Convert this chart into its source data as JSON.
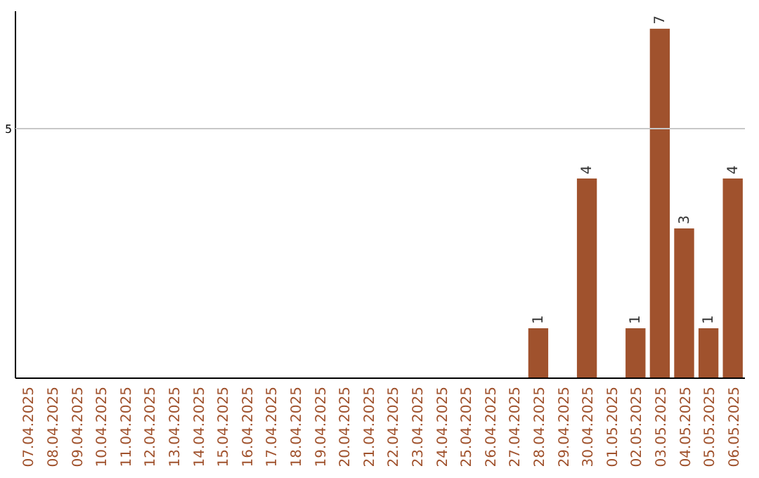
{
  "chart_data": {
    "type": "bar",
    "categories": [
      "07.04.2025",
      "08.04.2025",
      "09.04.2025",
      "10.04.2025",
      "11.04.2025",
      "12.04.2025",
      "13.04.2025",
      "14.04.2025",
      "15.04.2025",
      "16.04.2025",
      "17.04.2025",
      "18.04.2025",
      "19.04.2025",
      "20.04.2025",
      "21.04.2025",
      "22.04.2025",
      "23.04.2025",
      "24.04.2025",
      "25.04.2025",
      "26.04.2025",
      "27.04.2025",
      "28.04.2025",
      "29.04.2025",
      "30.04.2025",
      "01.05.2025",
      "02.05.2025",
      "03.05.2025",
      "04.05.2025",
      "05.05.2025",
      "06.05.2025"
    ],
    "values": [
      null,
      null,
      null,
      null,
      null,
      null,
      null,
      null,
      null,
      null,
      null,
      null,
      null,
      null,
      null,
      null,
      null,
      null,
      null,
      null,
      null,
      1,
      null,
      4,
      null,
      1,
      7,
      3,
      1,
      4
    ],
    "data_labels": true,
    "color": "#a0522d",
    "ylim": [
      0,
      7.35
    ],
    "ref_lines": [
      {
        "axis": "y",
        "value": 5,
        "label": "5",
        "color": "#c8c8c8"
      }
    ]
  }
}
